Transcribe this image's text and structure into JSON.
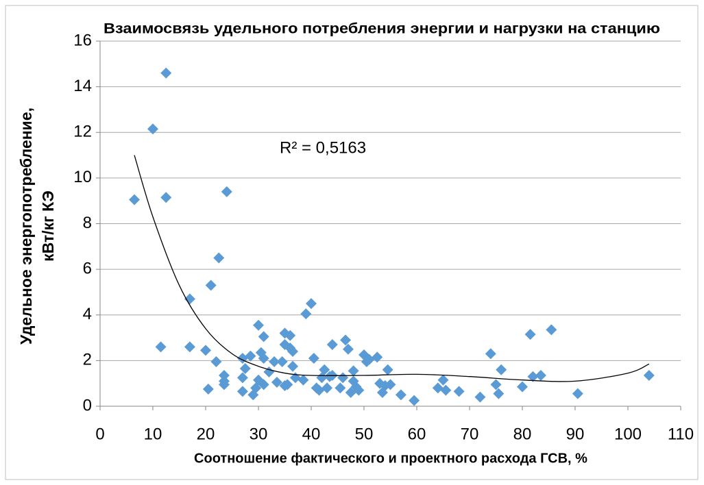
{
  "chart_data": {
    "type": "scatter",
    "title": "Взаимосвязь удельного потребления энергии и нагрузки на станцию",
    "x_label": "Соотношение фактического и проектного расхода ГСВ, %",
    "y_label": [
      "Удельное энергопотребление,",
      "кВт/кг КЭ"
    ],
    "annotation": "R² = 0,5163",
    "xlim": [
      0,
      110
    ],
    "xticks": [
      0,
      10,
      20,
      30,
      40,
      50,
      60,
      70,
      80,
      90,
      100,
      110
    ],
    "ylim": [
      0,
      16
    ],
    "yticks": [
      0,
      2,
      4,
      6,
      8,
      10,
      12,
      14,
      16
    ],
    "grid": true,
    "points": {
      "color": "#5b9bd5",
      "x": [
        6.5,
        10,
        12.5,
        12.5,
        11.5,
        24,
        22.5,
        21,
        17,
        17,
        20,
        20.5,
        22,
        23.5,
        23.5,
        23.5,
        27,
        27,
        27,
        27.5,
        28.5,
        29,
        29.5,
        30,
        30,
        30.5,
        31,
        31,
        31,
        32,
        33,
        33.5,
        34.5,
        35,
        35,
        35,
        35.5,
        36,
        36,
        36.5,
        36.5,
        37,
        38.5,
        39,
        40,
        40.5,
        41,
        41.5,
        42,
        42.5,
        43,
        43.5,
        44,
        44,
        45.5,
        46,
        46.5,
        47,
        47.5,
        48,
        48,
        48.5,
        49,
        50,
        50.5,
        51,
        52.5,
        53,
        53.5,
        54,
        54.5,
        55,
        57,
        59.5,
        64,
        65,
        65.5,
        68,
        72,
        74,
        75,
        75.5,
        76,
        80,
        81.5,
        82,
        83.5,
        85.5,
        90.5,
        104
      ],
      "y": [
        9.05,
        12.15,
        14.6,
        9.15,
        2.6,
        9.4,
        6.5,
        5.3,
        4.7,
        2.6,
        2.45,
        0.75,
        1.95,
        1.35,
        1.1,
        0.95,
        2.1,
        1.25,
        0.65,
        1.65,
        2.2,
        0.5,
        0.8,
        1.15,
        3.55,
        2.35,
        3.05,
        2.1,
        0.95,
        1.5,
        1.95,
        1.05,
        1.95,
        3.2,
        2.7,
        0.9,
        0.95,
        3.1,
        2.55,
        2.4,
        1.75,
        1.25,
        1.15,
        4.05,
        4.5,
        2.1,
        0.8,
        0.7,
        1.25,
        1.6,
        0.8,
        1.3,
        2.7,
        1.35,
        0.8,
        1.25,
        2.9,
        2.5,
        0.6,
        1.55,
        1.1,
        0.85,
        0.7,
        2.25,
        1.95,
        2.05,
        2.15,
        1.0,
        0.6,
        0.9,
        1.6,
        0.95,
        0.5,
        0.25,
        0.8,
        1.15,
        0.7,
        0.65,
        0.4,
        2.3,
        0.95,
        0.55,
        1.6,
        0.85,
        3.15,
        1.3,
        1.35,
        3.35,
        0.55,
        1.35
      ]
    },
    "trendline": {
      "color": "#000000",
      "x": [
        6.5,
        10,
        15,
        20,
        25,
        30,
        35,
        40,
        50,
        60,
        70,
        80,
        90,
        100,
        104
      ],
      "y": [
        11.0,
        8.3,
        5.3,
        3.4,
        2.3,
        1.75,
        1.45,
        1.35,
        1.35,
        1.4,
        1.3,
        1.15,
        1.1,
        1.45,
        1.85
      ]
    }
  }
}
